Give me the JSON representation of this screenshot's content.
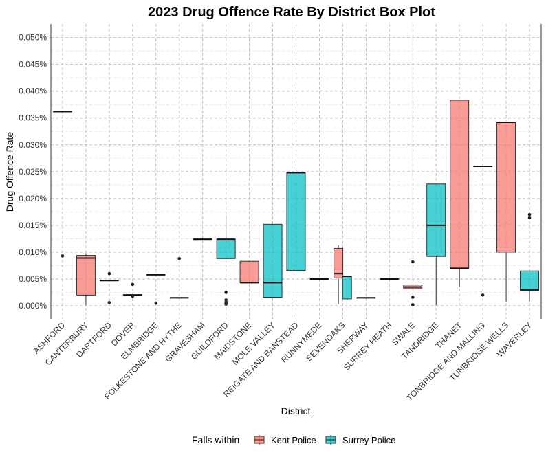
{
  "chart_data": {
    "type": "box",
    "title": "2023 Drug Offence Rate By District Box Plot",
    "xlabel": "District",
    "ylabel": "Drug Offence Rate",
    "ylim": [
      0,
      0.05
    ],
    "y_ticks": [
      0,
      0.005,
      0.01,
      0.015,
      0.02,
      0.025,
      0.03,
      0.035,
      0.04,
      0.045,
      0.05
    ],
    "y_tick_labels": [
      "0.000%",
      "0.005%",
      "0.010%",
      "0.015%",
      "0.020%",
      "0.025%",
      "0.030%",
      "0.035%",
      "0.040%",
      "0.045%",
      "0.050%"
    ],
    "grid": true,
    "legend": {
      "title": "Falls within",
      "position": "bottom",
      "entries": [
        {
          "name": "Kent Police",
          "color": "#F8766D"
        },
        {
          "name": "Surrey Police",
          "color": "#00BFC4"
        }
      ]
    },
    "categories": [
      "ASHFORD",
      "CANTERBURY",
      "DARTFORD",
      "DOVER",
      "ELMBRIDGE",
      "FOLKESTONE AND HYTHE",
      "GRAVESHAM",
      "GUILDFORD",
      "MAIDSTONE",
      "MOLE VALLEY",
      "REIGATE AND BANSTEAD",
      "RUNNYMEDE",
      "SEVENOAKS",
      "SHEPWAY",
      "SURREY HEATH",
      "SWALE",
      "TANDRIDGE",
      "THANET",
      "TONBRIDGE AND MALLING",
      "TUNBRIDGE WELLS",
      "WAVERLEY"
    ],
    "boxes": [
      {
        "cat": 0,
        "group": "Kent Police",
        "min": 0.0362,
        "q1": 0.0362,
        "median": 0.0362,
        "q3": 0.0362,
        "max": 0.0362,
        "outliers": [
          0.0093
        ],
        "offset": 0
      },
      {
        "cat": 1,
        "group": "Kent Police",
        "min": 0.0001,
        "q1": 0.002,
        "median": 0.0089,
        "q3": 0.0094,
        "max": 0.0098,
        "outliers": [],
        "offset": 0
      },
      {
        "cat": 2,
        "group": "Kent Police",
        "min": 0.0047,
        "q1": 0.0047,
        "median": 0.0047,
        "q3": 0.0048,
        "max": 0.0048,
        "outliers": [
          0.006,
          0.0006
        ],
        "offset": 0
      },
      {
        "cat": 3,
        "group": "Kent Police",
        "min": 0.002,
        "q1": 0.002,
        "median": 0.002,
        "q3": 0.0021,
        "max": 0.0021,
        "outliers": [
          0.004,
          0.0018
        ],
        "offset": 0
      },
      {
        "cat": 4,
        "group": "Surrey Police",
        "min": 0.0058,
        "q1": 0.0058,
        "median": 0.0058,
        "q3": 0.0058,
        "max": 0.0058,
        "outliers": [
          0.0005
        ],
        "offset": 0
      },
      {
        "cat": 5,
        "group": "Kent Police",
        "min": 0.0015,
        "q1": 0.0015,
        "median": 0.0015,
        "q3": 0.0015,
        "max": 0.0015,
        "outliers": [
          0.0088
        ],
        "offset": 0
      },
      {
        "cat": 6,
        "group": "Kent Police",
        "min": 0.0124,
        "q1": 0.0124,
        "median": 0.0124,
        "q3": 0.0124,
        "max": 0.0124,
        "outliers": [],
        "offset": 0
      },
      {
        "cat": 7,
        "group": "Surrey Police",
        "min": 0.0087,
        "q1": 0.0088,
        "median": 0.0124,
        "q3": 0.0124,
        "max": 0.017,
        "outliers": [
          0.0025,
          0.0011,
          0.0007,
          0.0005,
          0.0003
        ],
        "offset": 0
      },
      {
        "cat": 8,
        "group": "Kent Police",
        "min": 0.0043,
        "q1": 0.0043,
        "median": 0.0043,
        "q3": 0.0083,
        "max": 0.0083,
        "outliers": [],
        "offset": 0
      },
      {
        "cat": 9,
        "group": "Surrey Police",
        "min": 0.0016,
        "q1": 0.0016,
        "median": 0.0043,
        "q3": 0.0152,
        "max": 0.0152,
        "outliers": [],
        "offset": 0
      },
      {
        "cat": 10,
        "group": "Surrey Police",
        "min": 0.0008,
        "q1": 0.0066,
        "median": 0.0248,
        "q3": 0.0248,
        "max": 0.0248,
        "outliers": [],
        "offset": 0
      },
      {
        "cat": 11,
        "group": "Surrey Police",
        "min": 0.005,
        "q1": 0.005,
        "median": 0.005,
        "q3": 0.005,
        "max": 0.005,
        "outliers": [],
        "offset": 0
      },
      {
        "cat": 12,
        "group": "Kent Police",
        "min": 0.0003,
        "q1": 0.0052,
        "median": 0.006,
        "q3": 0.0107,
        "max": 0.0113,
        "outliers": [],
        "offset": -0.45
      },
      {
        "cat": 12,
        "group": "Surrey Police",
        "min": 0.0011,
        "q1": 0.0013,
        "median": 0.0055,
        "q3": 0.0055,
        "max": 0.0055,
        "outliers": [],
        "offset": 0.45
      },
      {
        "cat": 13,
        "group": "Kent Police",
        "min": 0.0015,
        "q1": 0.0015,
        "median": 0.0015,
        "q3": 0.0015,
        "max": 0.0015,
        "outliers": [],
        "offset": 0
      },
      {
        "cat": 14,
        "group": "Surrey Police",
        "min": 0.005,
        "q1": 0.005,
        "median": 0.005,
        "q3": 0.005,
        "max": 0.005,
        "outliers": [],
        "offset": 0
      },
      {
        "cat": 15,
        "group": "Kent Police",
        "min": 0.0031,
        "q1": 0.0032,
        "median": 0.0035,
        "q3": 0.0039,
        "max": 0.0039,
        "outliers": [
          0.0082,
          0.0016,
          0.0002
        ],
        "offset": 0
      },
      {
        "cat": 16,
        "group": "Surrey Police",
        "min": 0.0001,
        "q1": 0.0092,
        "median": 0.015,
        "q3": 0.0227,
        "max": 0.0227,
        "outliers": [],
        "offset": 0
      },
      {
        "cat": 17,
        "group": "Kent Police",
        "min": 0.0035,
        "q1": 0.007,
        "median": 0.007,
        "q3": 0.0383,
        "max": 0.0383,
        "outliers": [],
        "offset": 0
      },
      {
        "cat": 18,
        "group": "Kent Police",
        "min": 0.026,
        "q1": 0.026,
        "median": 0.026,
        "q3": 0.026,
        "max": 0.026,
        "outliers": [
          0.002
        ],
        "offset": 0
      },
      {
        "cat": 19,
        "group": "Kent Police",
        "min": 0.0007,
        "q1": 0.01,
        "median": 0.0342,
        "q3": 0.0342,
        "max": 0.0342,
        "outliers": [],
        "offset": 0
      },
      {
        "cat": 20,
        "group": "Surrey Police",
        "min": 0.0008,
        "q1": 0.0028,
        "median": 0.003,
        "q3": 0.0065,
        "max": 0.0065,
        "outliers": [
          0.017,
          0.0164
        ],
        "offset": 0
      }
    ]
  }
}
